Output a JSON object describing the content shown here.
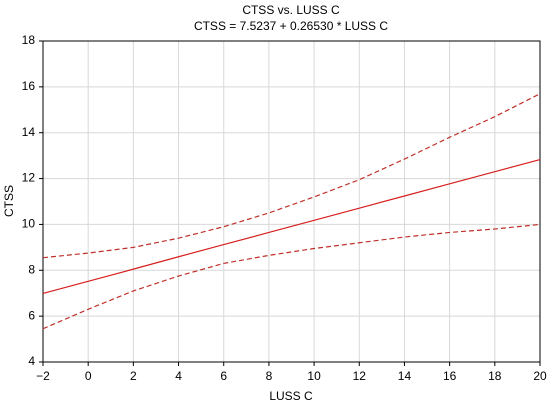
{
  "chart_data": {
    "type": "line",
    "title": "CTSS   vs. LUSS C",
    "subtitle": "CTSS   = 7.5237 + 0.26530 * LUSS C",
    "x_label": "LUSS C",
    "y_label": "CTSS",
    "x": [
      -2,
      0,
      2,
      4,
      6,
      8,
      10,
      12,
      14,
      16,
      18,
      20
    ],
    "series": [
      {
        "color": "#d62020",
        "dashed": false,
        "values": [
          6.99,
          7.52,
          8.05,
          8.59,
          9.12,
          9.65,
          10.18,
          10.71,
          11.24,
          11.77,
          12.3,
          12.83
        ]
      },
      {
        "color": "#c0302a",
        "dashed": true,
        "values": [
          8.55,
          8.75,
          9.0,
          9.4,
          9.9,
          10.5,
          11.2,
          11.95,
          12.85,
          13.8,
          14.7,
          15.7
        ]
      },
      {
        "color": "#c0302a",
        "dashed": true,
        "values": [
          5.45,
          6.3,
          7.1,
          7.75,
          8.3,
          8.65,
          8.95,
          9.2,
          9.45,
          9.65,
          9.8,
          10.0
        ]
      }
    ],
    "xlim": [
      -2,
      20
    ],
    "ylim": [
      4,
      18
    ],
    "xticks": [
      {
        "value": -2,
        "label": "−2"
      },
      0,
      2,
      4,
      6,
      8,
      10,
      12,
      14,
      16,
      18,
      20
    ],
    "yticks": [
      4,
      6,
      8,
      10,
      12,
      14,
      16,
      18
    ],
    "grid": true
  }
}
